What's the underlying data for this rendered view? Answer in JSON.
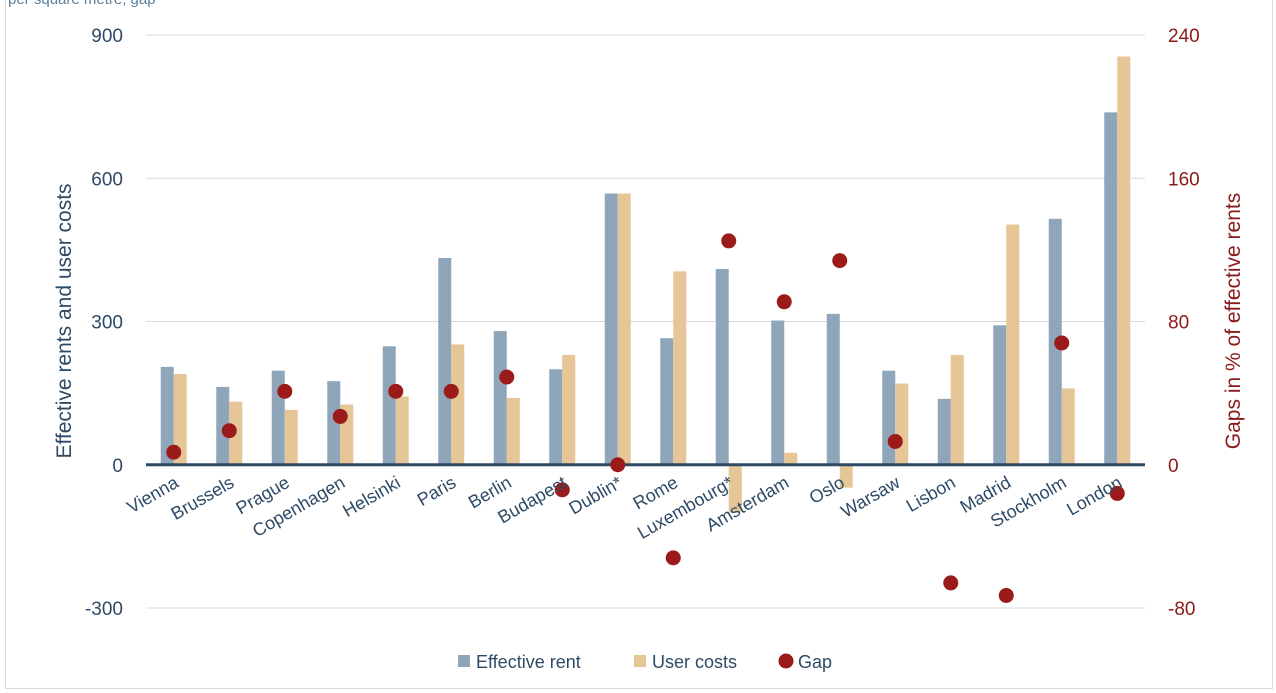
{
  "header_note": "per square metre; gap",
  "chart_data": {
    "type": "bar",
    "categories": [
      "Vienna",
      "Brussels",
      "Prague",
      "Copenhagen",
      "Helsinki",
      "Paris",
      "Berlin",
      "Budapest",
      "Dublin*",
      "Rome",
      "Luxembourg*",
      "Amsterdam",
      "Oslo",
      "Warsaw",
      "Lisbon",
      "Madrid",
      "Stockholm",
      "London"
    ],
    "series": [
      {
        "name": "Effective rent",
        "axis": "left",
        "kind": "bar",
        "color": "#8fa5ba",
        "values": [
          205,
          163,
          197,
          175,
          248,
          433,
          280,
          200,
          568,
          265,
          410,
          302,
          316,
          197,
          138,
          292,
          515,
          738
        ]
      },
      {
        "name": "User costs",
        "axis": "left",
        "kind": "bar",
        "color": "#e6c597",
        "values": [
          190,
          132,
          115,
          126,
          143,
          252,
          140,
          230,
          568,
          405,
          -100,
          25,
          -48,
          170,
          230,
          503,
          160,
          855
        ]
      },
      {
        "name": "Gap",
        "axis": "right",
        "kind": "point",
        "color": "#9b1b1b",
        "values": [
          7,
          19,
          41,
          27,
          41,
          41,
          49,
          -14,
          0,
          -52,
          125,
          91,
          114,
          13,
          -66,
          -73,
          68,
          -16
        ]
      }
    ],
    "ylabel": "Effective rents and user costs",
    "y2label": "Gaps in % of effective rents",
    "ylim": [
      -300,
      900
    ],
    "y2lim": [
      -80,
      240
    ],
    "yticks": [
      "900",
      "600",
      "300",
      "0",
      "-300"
    ],
    "y2ticks": [
      "240",
      "160",
      "80",
      "0",
      "-80"
    ],
    "legend": "bottom",
    "grid": true
  }
}
